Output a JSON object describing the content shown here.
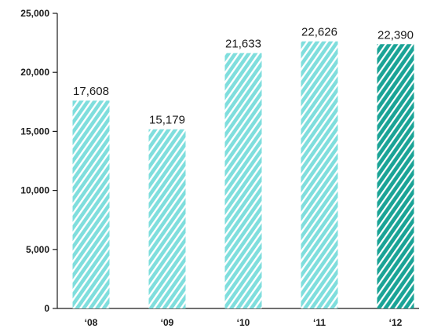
{
  "chart_data": {
    "type": "bar",
    "categories": [
      "‘08",
      "‘09",
      "‘10",
      "‘11",
      "‘12"
    ],
    "values": [
      17608,
      15179,
      21633,
      22626,
      22390
    ],
    "data_labels": [
      "17,608",
      "15,179",
      "21,633",
      "22,626",
      "22,390"
    ],
    "y_ticks": [
      0,
      5000,
      10000,
      15000,
      20000,
      25000
    ],
    "y_tick_labels": [
      "0",
      "5,000",
      "10,000",
      "15,000",
      "20,000",
      "25,000"
    ],
    "ylim": [
      0,
      25000
    ],
    "grid": false,
    "legend": "none",
    "colors": {
      "bar_light": "#7fdedd",
      "bar_light_stripe": "#ffffff",
      "bar_highlight": "#1aa396",
      "bar_highlight_stripe": "#ffffff",
      "axis": "#1a1a1a",
      "text": "#1a1a1a"
    },
    "highlight_index": 4
  }
}
